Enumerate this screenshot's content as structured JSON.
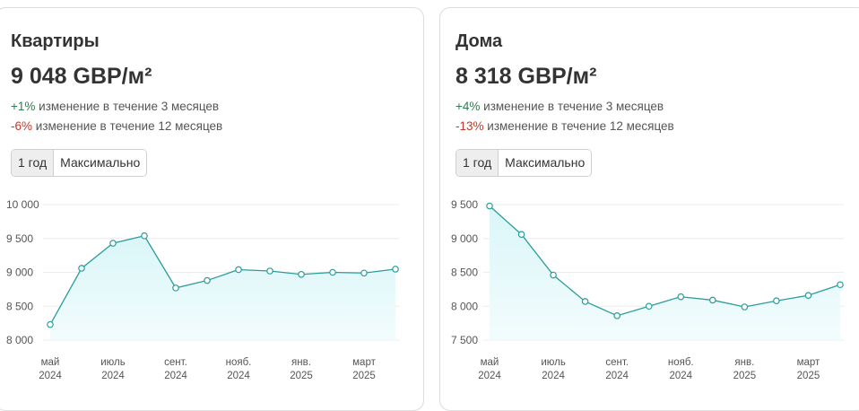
{
  "colors": {
    "line": "#2a9d9a",
    "area_top": "#d9f6f8",
    "area_bottom": "#f3fcfd",
    "grid": "#ececec",
    "positive": "#2e7d4f",
    "negative": "#c0392b"
  },
  "cards": [
    {
      "title": "Квартиры",
      "price": "9 048 GBP/м²",
      "change_3m": {
        "value": "+1%",
        "text": "изменение в течение 3 месяцев"
      },
      "change_12m": {
        "value": "-6%",
        "text": "изменение в течение 12 месяцев"
      },
      "buttons": [
        "1 год",
        "Максимально"
      ],
      "active_button": "1 год",
      "chart_data": {
        "type": "line",
        "x": [
          "2024-05",
          "2024-06",
          "2024-07",
          "2024-08",
          "2024-09",
          "2024-10",
          "2024-11",
          "2024-12",
          "2025-01",
          "2025-02",
          "2025-03",
          "2025-04"
        ],
        "values": [
          8230,
          9060,
          9430,
          9540,
          8770,
          8880,
          9040,
          9020,
          8970,
          9000,
          8990,
          9048
        ],
        "ylim": [
          8000,
          10000
        ],
        "yticks": [
          10000,
          9500,
          9000,
          8500,
          8000
        ],
        "ytick_labels": [
          "10 000",
          "9 500",
          "9 000",
          "8 500",
          "8 000"
        ],
        "xtick_labels": [
          {
            "x": "2024-05",
            "month": "май",
            "year": "2024"
          },
          {
            "x": "2024-07",
            "month": "июль",
            "year": "2024"
          },
          {
            "x": "2024-09",
            "month": "сент.",
            "year": "2024"
          },
          {
            "x": "2024-11",
            "month": "нояб.",
            "year": "2024"
          },
          {
            "x": "2025-01",
            "month": "янв.",
            "year": "2025"
          },
          {
            "x": "2025-03",
            "month": "март",
            "year": "2025"
          }
        ],
        "grid": true
      }
    },
    {
      "title": "Дома",
      "price": "8 318 GBP/м²",
      "change_3m": {
        "value": "+4%",
        "text": "изменение в течение 3 месяцев"
      },
      "change_12m": {
        "value": "-13%",
        "text": "изменение в течение 12 месяцев"
      },
      "buttons": [
        "1 год",
        "Максимально"
      ],
      "active_button": "1 год",
      "chart_data": {
        "type": "line",
        "x": [
          "2024-05",
          "2024-06",
          "2024-07",
          "2024-08",
          "2024-09",
          "2024-10",
          "2024-11",
          "2024-12",
          "2025-01",
          "2025-02",
          "2025-03",
          "2025-04"
        ],
        "values": [
          9480,
          9060,
          8460,
          8070,
          7860,
          8000,
          8140,
          8090,
          7990,
          8080,
          8160,
          8318
        ],
        "ylim": [
          7500,
          9500
        ],
        "yticks": [
          9500,
          9000,
          8500,
          8000,
          7500
        ],
        "ytick_labels": [
          "9 500",
          "9 000",
          "8 500",
          "8 000",
          "7 500"
        ],
        "xtick_labels": [
          {
            "x": "2024-05",
            "month": "май",
            "year": "2024"
          },
          {
            "x": "2024-07",
            "month": "июль",
            "year": "2024"
          },
          {
            "x": "2024-09",
            "month": "сент.",
            "year": "2024"
          },
          {
            "x": "2024-11",
            "month": "нояб.",
            "year": "2024"
          },
          {
            "x": "2025-01",
            "month": "янв.",
            "year": "2025"
          },
          {
            "x": "2025-03",
            "month": "март",
            "year": "2025"
          }
        ],
        "grid": true
      }
    }
  ]
}
